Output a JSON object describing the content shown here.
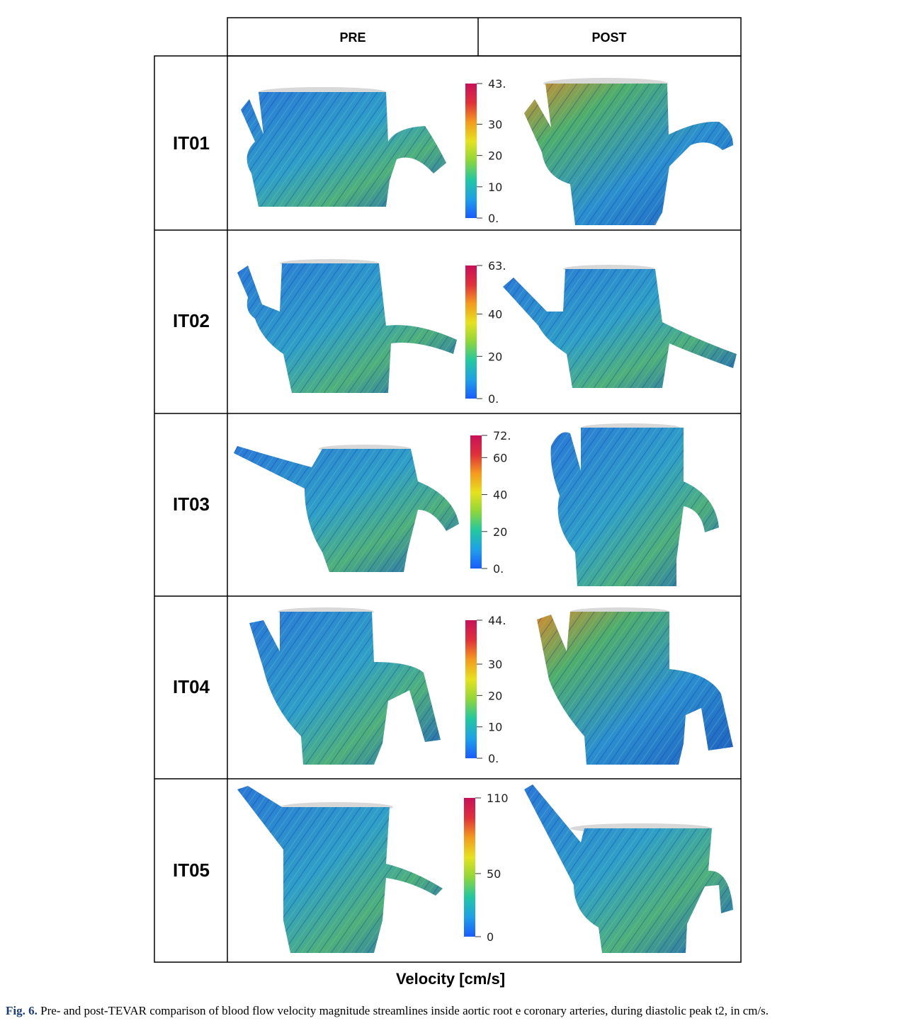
{
  "table": {
    "columns": [
      "PRE",
      "POST"
    ],
    "rows": [
      {
        "label": "IT01",
        "scale": {
          "max_label": "43.",
          "ticks": [
            "30",
            "20",
            "10",
            "0."
          ],
          "tick_values": [
            30,
            20,
            10,
            0
          ],
          "max": 43
        }
      },
      {
        "label": "IT02",
        "scale": {
          "max_label": "63.",
          "ticks": [
            "40",
            "20",
            "0."
          ],
          "tick_values": [
            40,
            20,
            0
          ],
          "max": 63
        }
      },
      {
        "label": "IT03",
        "scale": {
          "max_label": "72.",
          "ticks": [
            "60",
            "40",
            "20",
            "0."
          ],
          "tick_values": [
            60,
            40,
            20,
            0
          ],
          "max": 72
        }
      },
      {
        "label": "IT04",
        "scale": {
          "max_label": "44.",
          "ticks": [
            "30",
            "20",
            "10",
            "0."
          ],
          "tick_values": [
            30,
            20,
            10,
            0
          ],
          "max": 44
        }
      },
      {
        "label": "IT05",
        "scale": {
          "max_label": "110",
          "ticks": [
            "50",
            "0"
          ],
          "tick_values": [
            50,
            0
          ],
          "max": 110
        }
      }
    ]
  },
  "colormap": [
    "#1a5cff",
    "#1fa0e8",
    "#22c8a0",
    "#8fd63a",
    "#e6e21e",
    "#f59a1e",
    "#e0303a",
    "#c8105a"
  ],
  "velocity_label": "Velocity [cm/s]",
  "caption": {
    "label": "Fig. 6.",
    "text": "Pre- and post-TEVAR comparison of blood flow velocity magnitude streamlines inside aortic root e coronary arteries, during diastolic peak t2, in cm/s."
  }
}
